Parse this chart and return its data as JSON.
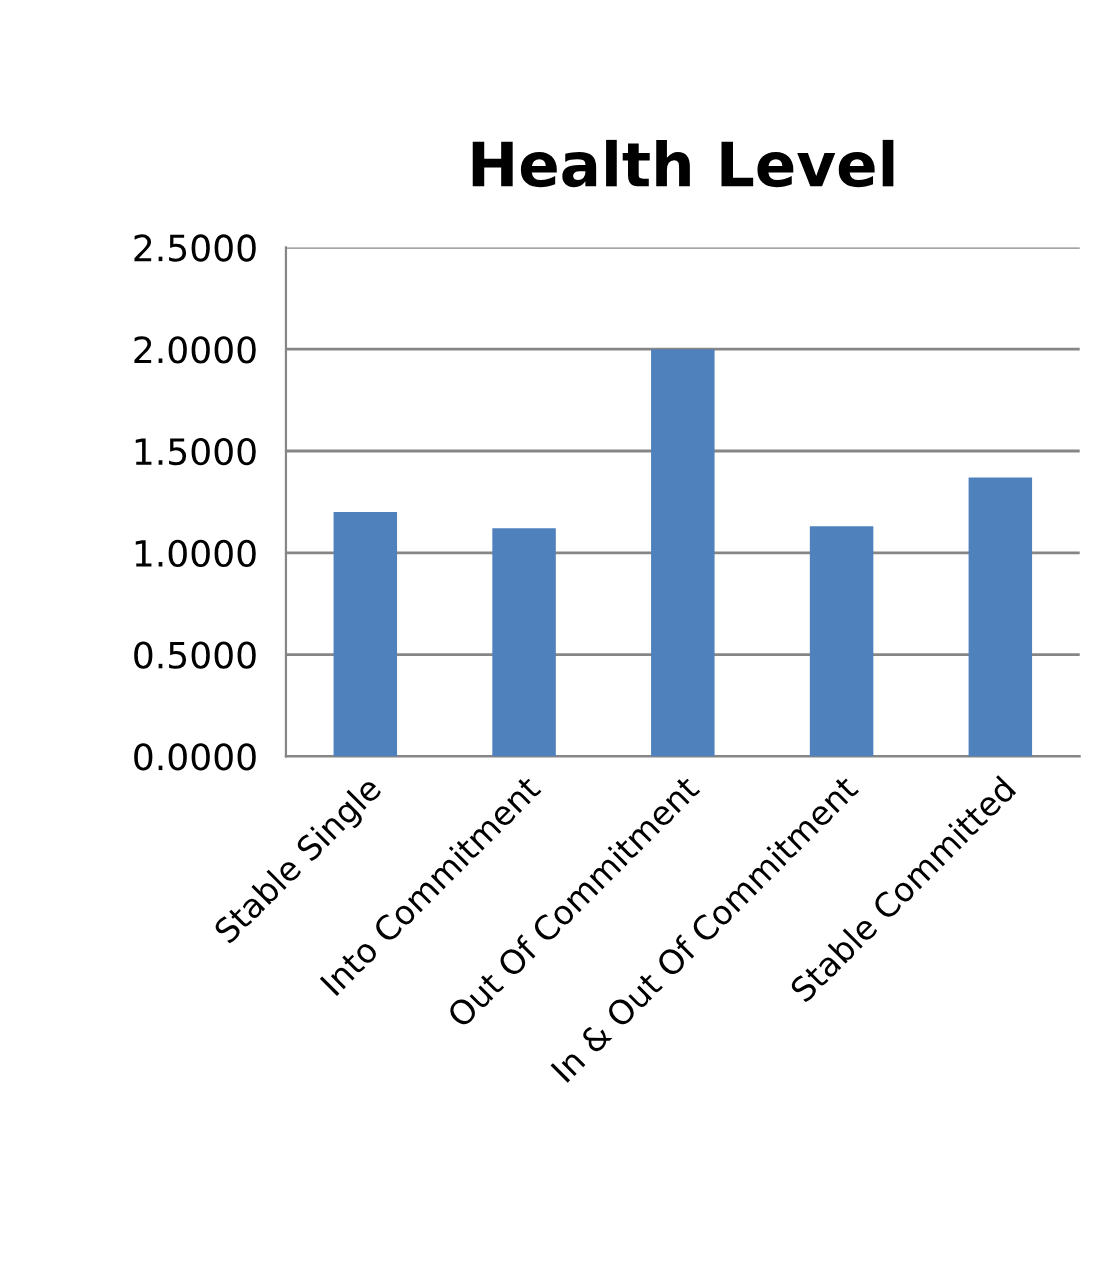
{
  "chart_data": {
    "type": "bar",
    "title": "Health Level",
    "categories": [
      "Stable Single",
      "Into Commitment",
      "Out Of Commitment",
      "In & Out Of Commitment",
      "Stable Committed"
    ],
    "values": [
      1.2,
      1.12,
      2.0,
      1.13,
      1.37
    ],
    "color": "#4f81bd",
    "ylim": [
      0,
      2.5
    ],
    "yticks": [
      {
        "value": 0,
        "label": "0.0000"
      },
      {
        "value": 0.5,
        "label": "0.5000"
      },
      {
        "value": 1,
        "label": "1.0000"
      },
      {
        "value": 1.5,
        "label": "1.5000"
      },
      {
        "value": 2,
        "label": "2.0000"
      },
      {
        "value": 2.5,
        "label": "2.5000"
      }
    ],
    "grid": "y",
    "legend": false
  }
}
